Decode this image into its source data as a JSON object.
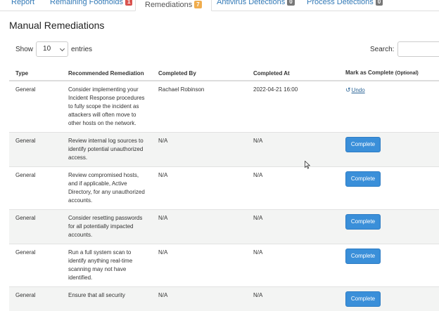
{
  "tabs": [
    {
      "label": "Report",
      "badge": ""
    },
    {
      "label": "Remaining Footholds",
      "badge": "1"
    },
    {
      "label": "Remediations",
      "badge": "7"
    },
    {
      "label": "Antivirus Detections",
      "badge": "0"
    },
    {
      "label": "Process Detections",
      "badge": "0"
    }
  ],
  "colors": {
    "badge_red": "#d9534f",
    "badge_orange": "#f0ad4e",
    "badge_gray": "#777777",
    "button_blue": "#3a8fd9",
    "link": "#337ab7"
  },
  "title": "Manual Remediations",
  "length_control": {
    "show_label": "Show",
    "value": "10",
    "entries_label": "entries"
  },
  "search": {
    "label": "Search:",
    "value": ""
  },
  "table": {
    "headers": {
      "type": "Type",
      "recommended": "Recommended Remediation",
      "completed_by": "Completed By",
      "completed_at": "Completed At",
      "mark": "Mark as Complete",
      "mark_optional": "(Optional)"
    },
    "rows": [
      {
        "type": "General",
        "remediation": "Consider implementing your Incident Response procedures to fully scope the incident as attackers will often move to other hosts on the network.",
        "completed_by": "Rachael Robinson",
        "completed_at": "2022-04-21 16:00",
        "action": "Undo"
      },
      {
        "type": "General",
        "remediation": "Review internal log sources to identify potential unauthorized access.",
        "completed_by": "N/A",
        "completed_at": "N/A",
        "action": "Complete"
      },
      {
        "type": "General",
        "remediation": "Review compromised hosts, and if applicable, Active Directory, for any unauthorized accounts.",
        "completed_by": "N/A",
        "completed_at": "N/A",
        "action": "Complete"
      },
      {
        "type": "General",
        "remediation": "Consider resetting passwords for all potentially impacted accounts.",
        "completed_by": "N/A",
        "completed_at": "N/A",
        "action": "Complete"
      },
      {
        "type": "General",
        "remediation": "Run a full system scan to identify anything real-time scanning may not have identified.",
        "completed_by": "N/A",
        "completed_at": "N/A",
        "action": "Complete"
      },
      {
        "type": "General",
        "remediation": "Ensure that all security",
        "completed_by": "N/A",
        "completed_at": "N/A",
        "action": "Complete"
      }
    ]
  }
}
